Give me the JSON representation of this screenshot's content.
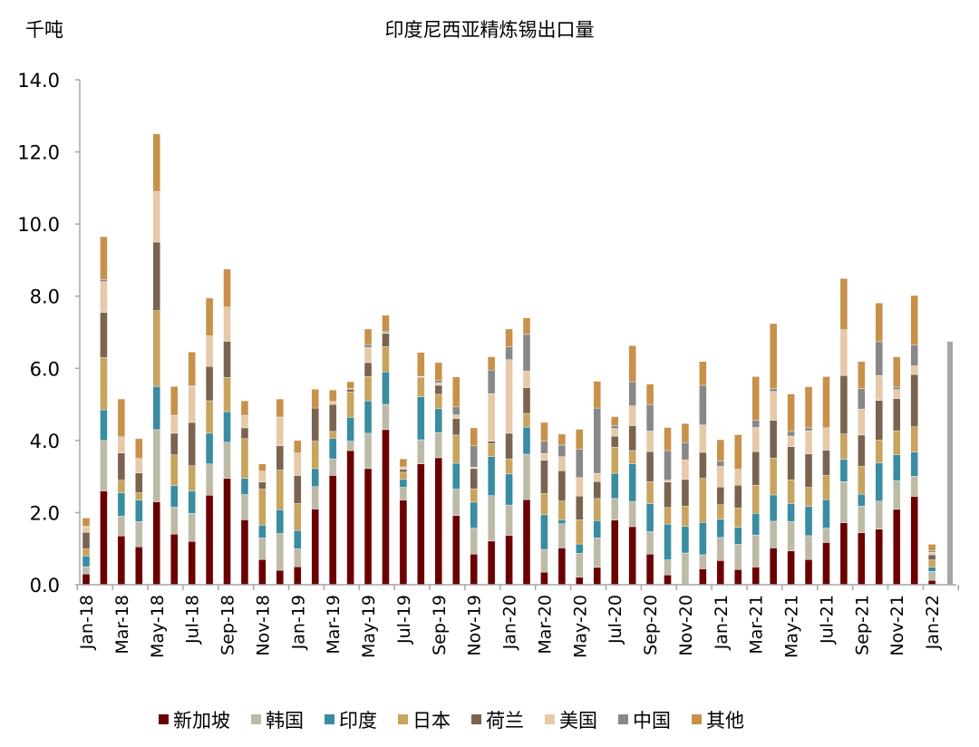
{
  "chart_data": {
    "type": "bar",
    "stacked": true,
    "title": "印度尼西亚精炼锡出口量",
    "ylabel": "千吨",
    "xlabel": "",
    "ylim": [
      0,
      14
    ],
    "yticks": [
      "0.0",
      "2.0",
      "4.0",
      "6.0",
      "8.0",
      "10.0",
      "12.0",
      "14.0"
    ],
    "grid": false,
    "legend_position": "bottom",
    "categories": [
      "Jan-18",
      "Feb-18",
      "Mar-18",
      "Apr-18",
      "May-18",
      "Jun-18",
      "Jul-18",
      "Aug-18",
      "Sep-18",
      "Oct-18",
      "Nov-18",
      "Dec-18",
      "Jan-19",
      "Feb-19",
      "Mar-19",
      "Apr-19",
      "May-19",
      "Jun-19",
      "Jul-19",
      "Aug-19",
      "Sep-19",
      "Oct-19",
      "Nov-19",
      "Dec-19",
      "Jan-20",
      "Feb-20",
      "Mar-20",
      "Apr-20",
      "May-20",
      "Jun-20",
      "Jul-20",
      "Aug-20",
      "Sep-20",
      "Oct-20",
      "Nov-20",
      "Dec-20",
      "Jan-21",
      "Feb-21",
      "Mar-21",
      "Apr-21",
      "May-21",
      "Jun-21",
      "Jul-21",
      "Aug-21",
      "Sep-21",
      "Oct-21",
      "Nov-21",
      "Dec-21",
      "Jan-22"
    ],
    "tick_labels": [
      "Jan-18",
      "Mar-18",
      "May-18",
      "Jul-18",
      "Sep-18",
      "Nov-18",
      "Jan-19",
      "Mar-19",
      "May-19",
      "Jul-19",
      "Sep-19",
      "Nov-19",
      "Jan-20",
      "Mar-20",
      "May-20",
      "Jul-20",
      "Sep-20",
      "Nov-20",
      "Jan-21",
      "Mar-21",
      "May-21",
      "Jul-21",
      "Sep-21",
      "Nov-21",
      "Jan-22"
    ],
    "series": [
      {
        "name": "新加坡",
        "color": "#6B0000",
        "values": [
          0.3,
          2.6,
          1.35,
          1.05,
          2.3,
          1.4,
          1.2,
          2.48,
          2.95,
          1.8,
          0.7,
          0.4,
          0.5,
          2.1,
          3.03,
          3.72,
          3.22,
          4.3,
          2.35,
          3.35,
          3.52,
          1.92,
          0.85,
          1.21,
          1.37,
          2.36,
          0.35,
          1.02,
          0.21,
          0.48,
          1.79,
          1.61,
          0.85,
          0.27,
          0.0,
          0.44,
          0.67,
          0.42,
          0.49,
          1.02,
          0.94,
          0.7,
          1.17,
          1.72,
          1.44,
          1.54,
          2.09,
          2.45,
          0.12
        ]
      },
      {
        "name": "韩国",
        "color": "#BDBBA8",
        "values": [
          0.2,
          1.4,
          0.55,
          0.7,
          2.0,
          0.75,
          0.78,
          0.87,
          1.0,
          0.7,
          0.6,
          1.02,
          0.5,
          0.62,
          0.46,
          0.26,
          0.98,
          0.7,
          0.35,
          0.67,
          0.7,
          0.73,
          0.72,
          1.26,
          0.84,
          1.26,
          0.63,
          0.67,
          0.66,
          0.82,
          0.6,
          0.7,
          0.62,
          0.42,
          0.88,
          0.39,
          0.64,
          0.7,
          0.89,
          0.74,
          0.81,
          0.66,
          0.4,
          1.14,
          0.74,
          0.78,
          0.79,
          0.56,
          0.25
        ]
      },
      {
        "name": "印度",
        "color": "#3A8CA0",
        "values": [
          0.3,
          0.85,
          0.65,
          0.6,
          1.2,
          0.6,
          0.62,
          0.85,
          0.85,
          0.45,
          0.35,
          0.66,
          0.5,
          0.5,
          0.57,
          0.66,
          0.9,
          0.9,
          0.22,
          1.19,
          0.66,
          0.72,
          0.72,
          1.08,
          0.86,
          0.75,
          0.96,
          0.11,
          0.26,
          0.48,
          0.7,
          1.04,
          0.78,
          0.99,
          0.74,
          0.9,
          0.51,
          0.47,
          0.6,
          0.73,
          0.5,
          0.81,
          0.79,
          0.62,
          0.33,
          1.06,
          0.72,
          0.67,
          0.12
        ]
      },
      {
        "name": "日本",
        "color": "#C8A45E",
        "values": [
          0.2,
          1.45,
          0.35,
          0.2,
          2.1,
          0.85,
          0.7,
          0.9,
          0.95,
          1.1,
          1.0,
          1.1,
          0.75,
          0.76,
          0.19,
          0.71,
          0.67,
          0.7,
          0.2,
          0.53,
          0.4,
          0.78,
          0.37,
          0.36,
          0.42,
          0.38,
          0.59,
          0.52,
          0.67,
          0.61,
          0.72,
          0.37,
          0.61,
          0.46,
          0.56,
          1.22,
          0.4,
          0.54,
          0.78,
          1.02,
          0.66,
          0.53,
          0.67,
          0.7,
          0.77,
          0.63,
          0.67,
          0.7,
          0.2
        ]
      },
      {
        "name": "荷兰",
        "color": "#7A6350",
        "values": [
          0.45,
          1.25,
          0.75,
          0.55,
          1.9,
          0.6,
          1.2,
          0.95,
          1.0,
          0.3,
          0.2,
          0.67,
          0.78,
          0.92,
          0.75,
          0.07,
          0.39,
          0.37,
          0.08,
          0.02,
          0.25,
          0.46,
          0.56,
          0.07,
          0.71,
          0.71,
          0.92,
          0.84,
          0.66,
          0.47,
          0.31,
          0.69,
          0.83,
          0.71,
          0.74,
          0.72,
          0.49,
          0.63,
          0.93,
          1.05,
          0.92,
          0.93,
          0.7,
          1.62,
          0.87,
          1.1,
          0.89,
          1.45,
          0.14
        ]
      },
      {
        "name": "美国",
        "color": "#E6C9A8",
        "values": [
          0.15,
          0.85,
          0.45,
          0.4,
          1.4,
          0.5,
          1.0,
          0.85,
          0.95,
          0.35,
          0.3,
          0.8,
          0.62,
          0.0,
          0.08,
          0.02,
          0.42,
          0.02,
          0.07,
          0.02,
          0.07,
          0.1,
          0.04,
          1.32,
          2.04,
          0.46,
          0.19,
          0.39,
          0.51,
          0.23,
          0.21,
          0.55,
          0.57,
          0.05,
          0.54,
          0.76,
          0.57,
          0.44,
          0.67,
          0.8,
          0.29,
          0.64,
          0.62,
          1.27,
          0.72,
          0.69,
          0.25,
          0.24,
          0.07
        ]
      },
      {
        "name": "中国",
        "color": "#888888",
        "values": [
          0.02,
          0.05,
          0,
          0,
          0,
          0,
          0.02,
          0,
          0,
          0,
          0,
          0,
          0,
          0,
          0,
          0,
          0.08,
          0.04,
          0,
          0,
          0.06,
          0.22,
          0.59,
          0.65,
          0.36,
          1.02,
          0.34,
          0.32,
          0.79,
          1.81,
          0.08,
          0.67,
          0.74,
          0.82,
          0.48,
          1.1,
          0.15,
          0,
          0.2,
          0.08,
          0.13,
          0.08,
          0,
          0,
          0.57,
          0.94,
          0.07,
          0.58,
          0.04
        ]
      },
      {
        "name": "其他",
        "color": "#C8914A",
        "values": [
          0.23,
          1.2,
          1.05,
          0.55,
          1.6,
          0.8,
          0.93,
          1.05,
          1.05,
          0.4,
          0.2,
          0.5,
          0.35,
          0.52,
          0.32,
          0.19,
          0.43,
          0.44,
          0.22,
          0.66,
          0.5,
          0.83,
          0.5,
          0.37,
          0.49,
          0.46,
          0.52,
          0.31,
          0.55,
          0.74,
          0.25,
          1.0,
          0.56,
          0.64,
          0.53,
          0.66,
          0.59,
          0.96,
          1.21,
          1.8,
          1.04,
          1.14,
          1.42,
          1.42,
          0.75,
          1.07,
          0.84,
          1.37,
          0.18
        ]
      }
    ],
    "extra_bar": {
      "value": 6.74,
      "color": "#A6A6A6"
    }
  }
}
